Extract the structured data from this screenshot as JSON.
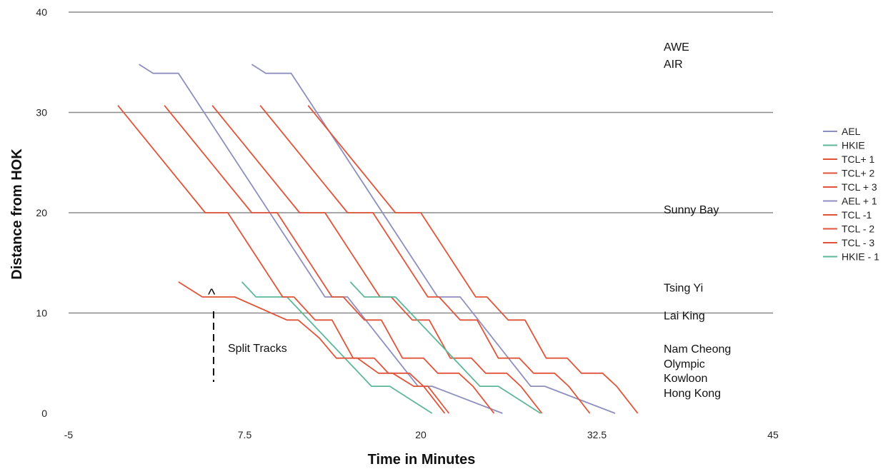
{
  "chart_data": {
    "type": "line",
    "xlabel": "Time  in Minutes",
    "ylabel": "Distance from HOK",
    "xlim": [
      -5,
      45
    ],
    "ylim": [
      0,
      40
    ],
    "xticks": [
      -5,
      7.5,
      20,
      32.5,
      45
    ],
    "xtick_labels": [
      "-5",
      "7.5",
      "20",
      "32.5",
      "45"
    ],
    "yticks": [
      0,
      10,
      20,
      30,
      40
    ],
    "ytick_labels": [
      "0",
      "10",
      "20",
      "30",
      "40"
    ],
    "grid": "horizontal",
    "legend_position": "right",
    "stations": [
      {
        "label": "AWE",
        "y": 36.5
      },
      {
        "label": "AIR",
        "y": 34.8
      },
      {
        "label": "Sunny Bay",
        "y": 20.3
      },
      {
        "label": "Tsing Yi",
        "y": 12.5
      },
      {
        "label": "Lai King",
        "y": 9.7
      },
      {
        "label": "Nam Cheong",
        "y": 6.4
      },
      {
        "label": "Olympic",
        "y": 4.9
      },
      {
        "label": "Kowloon",
        "y": 3.5
      },
      {
        "label": "Hong Kong",
        "y": 2.0
      }
    ],
    "annotation": {
      "text": "Split Tracks",
      "caret": "^"
    },
    "series": [
      {
        "name": "AEL",
        "color": "#8f8fbf",
        "x": [
          0,
          1,
          2.8,
          13.2,
          14.8,
          19.8,
          20.8,
          25.8
        ],
        "y": [
          34.8,
          33.9,
          33.9,
          11.6,
          11.6,
          2.7,
          2.7,
          0
        ]
      },
      {
        "name": "HKIE",
        "color": "#5fb79a",
        "x": [
          7.3,
          8.3,
          10.5,
          16.5,
          17.8,
          20.8
        ],
        "y": [
          13.1,
          11.6,
          11.6,
          2.7,
          2.7,
          0
        ]
      },
      {
        "name": "TCL+ 1",
        "color": "#e0553a",
        "x": [
          -1.5,
          4.7,
          6.3,
          10.2,
          11,
          12.5,
          13.7,
          15.2,
          16.7,
          17.7,
          19.2,
          20.2,
          21.7
        ],
        "y": [
          30.7,
          20,
          20,
          11.6,
          11.6,
          9.3,
          9.3,
          5.5,
          5.5,
          4,
          4,
          2.7,
          0
        ]
      },
      {
        "name": "TCL+ 2",
        "color": "#e0553a",
        "x": [
          1.8,
          8.0,
          9.8,
          13.7,
          14.5,
          16.0,
          17.2,
          18.7,
          20.2,
          21.2,
          22.7,
          23.7,
          25.2
        ],
        "y": [
          30.7,
          20,
          20,
          11.6,
          11.6,
          9.3,
          9.3,
          5.5,
          5.5,
          4,
          4,
          2.7,
          0
        ]
      },
      {
        "name": "TCL + 3",
        "color": "#e0553a",
        "x": [
          5.2,
          11.4,
          13.2,
          17.1,
          17.9,
          19.4,
          20.6,
          22.1,
          23.6,
          24.6,
          26.1,
          27.1,
          28.6
        ],
        "y": [
          30.7,
          20,
          20,
          11.6,
          11.6,
          9.3,
          9.3,
          5.5,
          5.5,
          4,
          4,
          2.7,
          0
        ]
      },
      {
        "name": "AEL + 1",
        "color": "#8f8fbf",
        "x": [
          8.0,
          9.0,
          10.8,
          21.2,
          22.8,
          27.8,
          28.8,
          33.8
        ],
        "y": [
          34.8,
          33.9,
          33.9,
          11.6,
          11.6,
          2.7,
          2.7,
          0
        ]
      },
      {
        "name": "TCL -1",
        "color": "#e0553a",
        "x": [
          8.6,
          14.8,
          16.6,
          20.5,
          21.3,
          22.8,
          24.0,
          25.5,
          27.0,
          28.0,
          29.5,
          30.5,
          32.0
        ],
        "y": [
          30.7,
          20,
          20,
          11.6,
          11.6,
          9.3,
          9.3,
          5.5,
          5.5,
          4,
          4,
          2.7,
          0
        ]
      },
      {
        "name": "TCL - 2",
        "color": "#e0553a",
        "x": [
          12.0,
          18.2,
          20.0,
          23.9,
          24.7,
          26.2,
          27.4,
          28.9,
          30.4,
          31.4,
          32.9,
          33.9,
          35.4
        ],
        "y": [
          30.7,
          20,
          20,
          11.6,
          11.6,
          9.3,
          9.3,
          5.5,
          5.5,
          4,
          4,
          2.7,
          0
        ]
      },
      {
        "name": "TCL - 3",
        "color": "#e0553a",
        "x": [
          2.8,
          4.5,
          6.8,
          10.5,
          11.3,
          12.8,
          14.0,
          15.5,
          17.0,
          18.0,
          19.5,
          20.5,
          22.0
        ],
        "y": [
          13.1,
          11.6,
          11.6,
          9.3,
          9.3,
          7.5,
          5.5,
          5.5,
          4,
          4,
          2.7,
          2.7,
          0
        ]
      },
      {
        "name": "HKIE - 1",
        "color": "#5fb79a",
        "x": [
          15.0,
          16.0,
          18.2,
          24.2,
          25.5,
          28.5
        ],
        "y": [
          13.1,
          11.6,
          11.6,
          2.7,
          2.7,
          0
        ]
      }
    ]
  }
}
